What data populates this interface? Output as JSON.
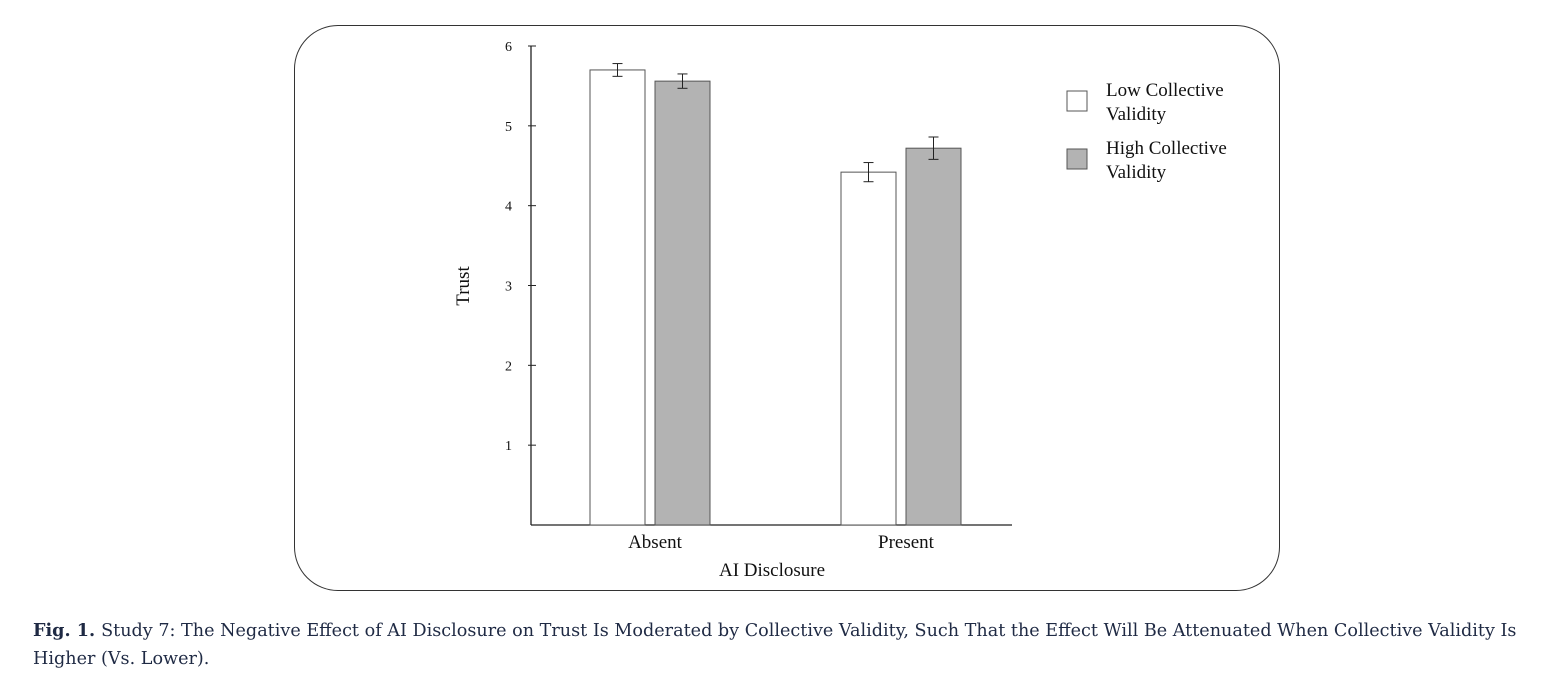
{
  "figure": {
    "label": "Fig. 1.",
    "caption": "Study 7: The Negative Effect of AI Disclosure on Trust Is Moderated by Collective Validity, Such That the Effect Will Be Attenuated When Collective Validity Is Higher (Vs. Lower)."
  },
  "chart_data": {
    "type": "bar",
    "title": "",
    "xlabel": "AI Disclosure",
    "ylabel": "Trust",
    "ylim": [
      0,
      6
    ],
    "yticks": [
      1,
      2,
      3,
      4,
      5,
      6
    ],
    "categories": [
      "Absent",
      "Present"
    ],
    "series": [
      {
        "name": "Low Collective Validity",
        "color": "#ffffff",
        "values": [
          5.7,
          4.42
        ],
        "errors": [
          0.08,
          0.12
        ]
      },
      {
        "name": "High Collective Validity",
        "color": "#b3b3b3",
        "values": [
          5.56,
          4.72
        ],
        "errors": [
          0.09,
          0.14
        ]
      }
    ],
    "legend": {
      "position": "top-right",
      "entries": [
        {
          "line1": "Low Collective",
          "line2": "Validity"
        },
        {
          "line1": "High Collective",
          "line2": "Validity"
        }
      ]
    },
    "grid": false
  }
}
